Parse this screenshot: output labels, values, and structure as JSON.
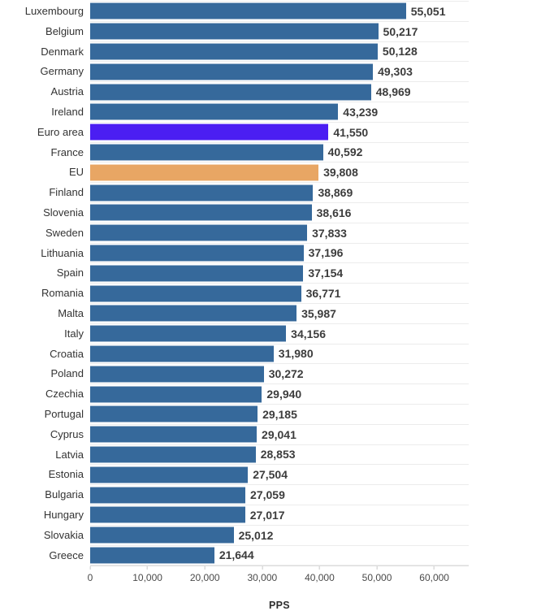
{
  "colors": {
    "bar_default": "#36699B",
    "bar_euro_area": "#4B1EF2",
    "bar_eu": "#E8A664",
    "value_label": "#3C3C3C",
    "category_label": "#333333",
    "gridline": "#ECECEC",
    "axis_line": "#DCDCDC"
  },
  "chart_data": {
    "type": "bar",
    "orientation": "horizontal",
    "title": "",
    "xlabel": "PPS",
    "ylabel": "",
    "xlim": [
      0,
      66000
    ],
    "grid": "row-separator-lines",
    "legend": "none",
    "x_ticks": [
      0,
      10000,
      20000,
      30000,
      40000,
      50000,
      60000
    ],
    "x_tick_labels": [
      "0",
      "10,000",
      "20,000",
      "30,000",
      "40,000",
      "50,000",
      "60,000"
    ],
    "categories": [
      "Luxembourg",
      "Belgium",
      "Denmark",
      "Germany",
      "Austria",
      "Ireland",
      "Euro area",
      "France",
      "EU",
      "Finland",
      "Slovenia",
      "Sweden",
      "Lithuania",
      "Spain",
      "Romania",
      "Malta",
      "Italy",
      "Croatia",
      "Poland",
      "Czechia",
      "Portugal",
      "Cyprus",
      "Latvia",
      "Estonia",
      "Bulgaria",
      "Hungary",
      "Slovakia",
      "Greece"
    ],
    "values": [
      55051,
      50217,
      50128,
      49303,
      48969,
      43239,
      41550,
      40592,
      39808,
      38869,
      38616,
      37833,
      37196,
      37154,
      36771,
      35987,
      34156,
      31980,
      30272,
      29940,
      29185,
      29041,
      28853,
      27504,
      27059,
      27017,
      25012,
      21644
    ],
    "bars": [
      {
        "label": "Luxembourg",
        "value": 55051,
        "display": "55,051",
        "highlight": "default"
      },
      {
        "label": "Belgium",
        "value": 50217,
        "display": "50,217",
        "highlight": "default"
      },
      {
        "label": "Denmark",
        "value": 50128,
        "display": "50,128",
        "highlight": "default"
      },
      {
        "label": "Germany",
        "value": 49303,
        "display": "49,303",
        "highlight": "default"
      },
      {
        "label": "Austria",
        "value": 48969,
        "display": "48,969",
        "highlight": "default"
      },
      {
        "label": "Ireland",
        "value": 43239,
        "display": "43,239",
        "highlight": "default"
      },
      {
        "label": "Euro area",
        "value": 41550,
        "display": "41,550",
        "highlight": "euro_area"
      },
      {
        "label": "France",
        "value": 40592,
        "display": "40,592",
        "highlight": "default"
      },
      {
        "label": "EU",
        "value": 39808,
        "display": "39,808",
        "highlight": "eu"
      },
      {
        "label": "Finland",
        "value": 38869,
        "display": "38,869",
        "highlight": "default"
      },
      {
        "label": "Slovenia",
        "value": 38616,
        "display": "38,616",
        "highlight": "default"
      },
      {
        "label": "Sweden",
        "value": 37833,
        "display": "37,833",
        "highlight": "default"
      },
      {
        "label": "Lithuania",
        "value": 37196,
        "display": "37,196",
        "highlight": "default"
      },
      {
        "label": "Spain",
        "value": 37154,
        "display": "37,154",
        "highlight": "default"
      },
      {
        "label": "Romania",
        "value": 36771,
        "display": "36,771",
        "highlight": "default"
      },
      {
        "label": "Malta",
        "value": 35987,
        "display": "35,987",
        "highlight": "default"
      },
      {
        "label": "Italy",
        "value": 34156,
        "display": "34,156",
        "highlight": "default"
      },
      {
        "label": "Croatia",
        "value": 31980,
        "display": "31,980",
        "highlight": "default"
      },
      {
        "label": "Poland",
        "value": 30272,
        "display": "30,272",
        "highlight": "default"
      },
      {
        "label": "Czechia",
        "value": 29940,
        "display": "29,940",
        "highlight": "default"
      },
      {
        "label": "Portugal",
        "value": 29185,
        "display": "29,185",
        "highlight": "default"
      },
      {
        "label": "Cyprus",
        "value": 29041,
        "display": "29,041",
        "highlight": "default"
      },
      {
        "label": "Latvia",
        "value": 28853,
        "display": "28,853",
        "highlight": "default"
      },
      {
        "label": "Estonia",
        "value": 27504,
        "display": "27,504",
        "highlight": "default"
      },
      {
        "label": "Bulgaria",
        "value": 27059,
        "display": "27,059",
        "highlight": "default"
      },
      {
        "label": "Hungary",
        "value": 27017,
        "display": "27,017",
        "highlight": "default"
      },
      {
        "label": "Slovakia",
        "value": 25012,
        "display": "25,012",
        "highlight": "default"
      },
      {
        "label": "Greece",
        "value": 21644,
        "display": "21,644",
        "highlight": "default"
      }
    ]
  }
}
